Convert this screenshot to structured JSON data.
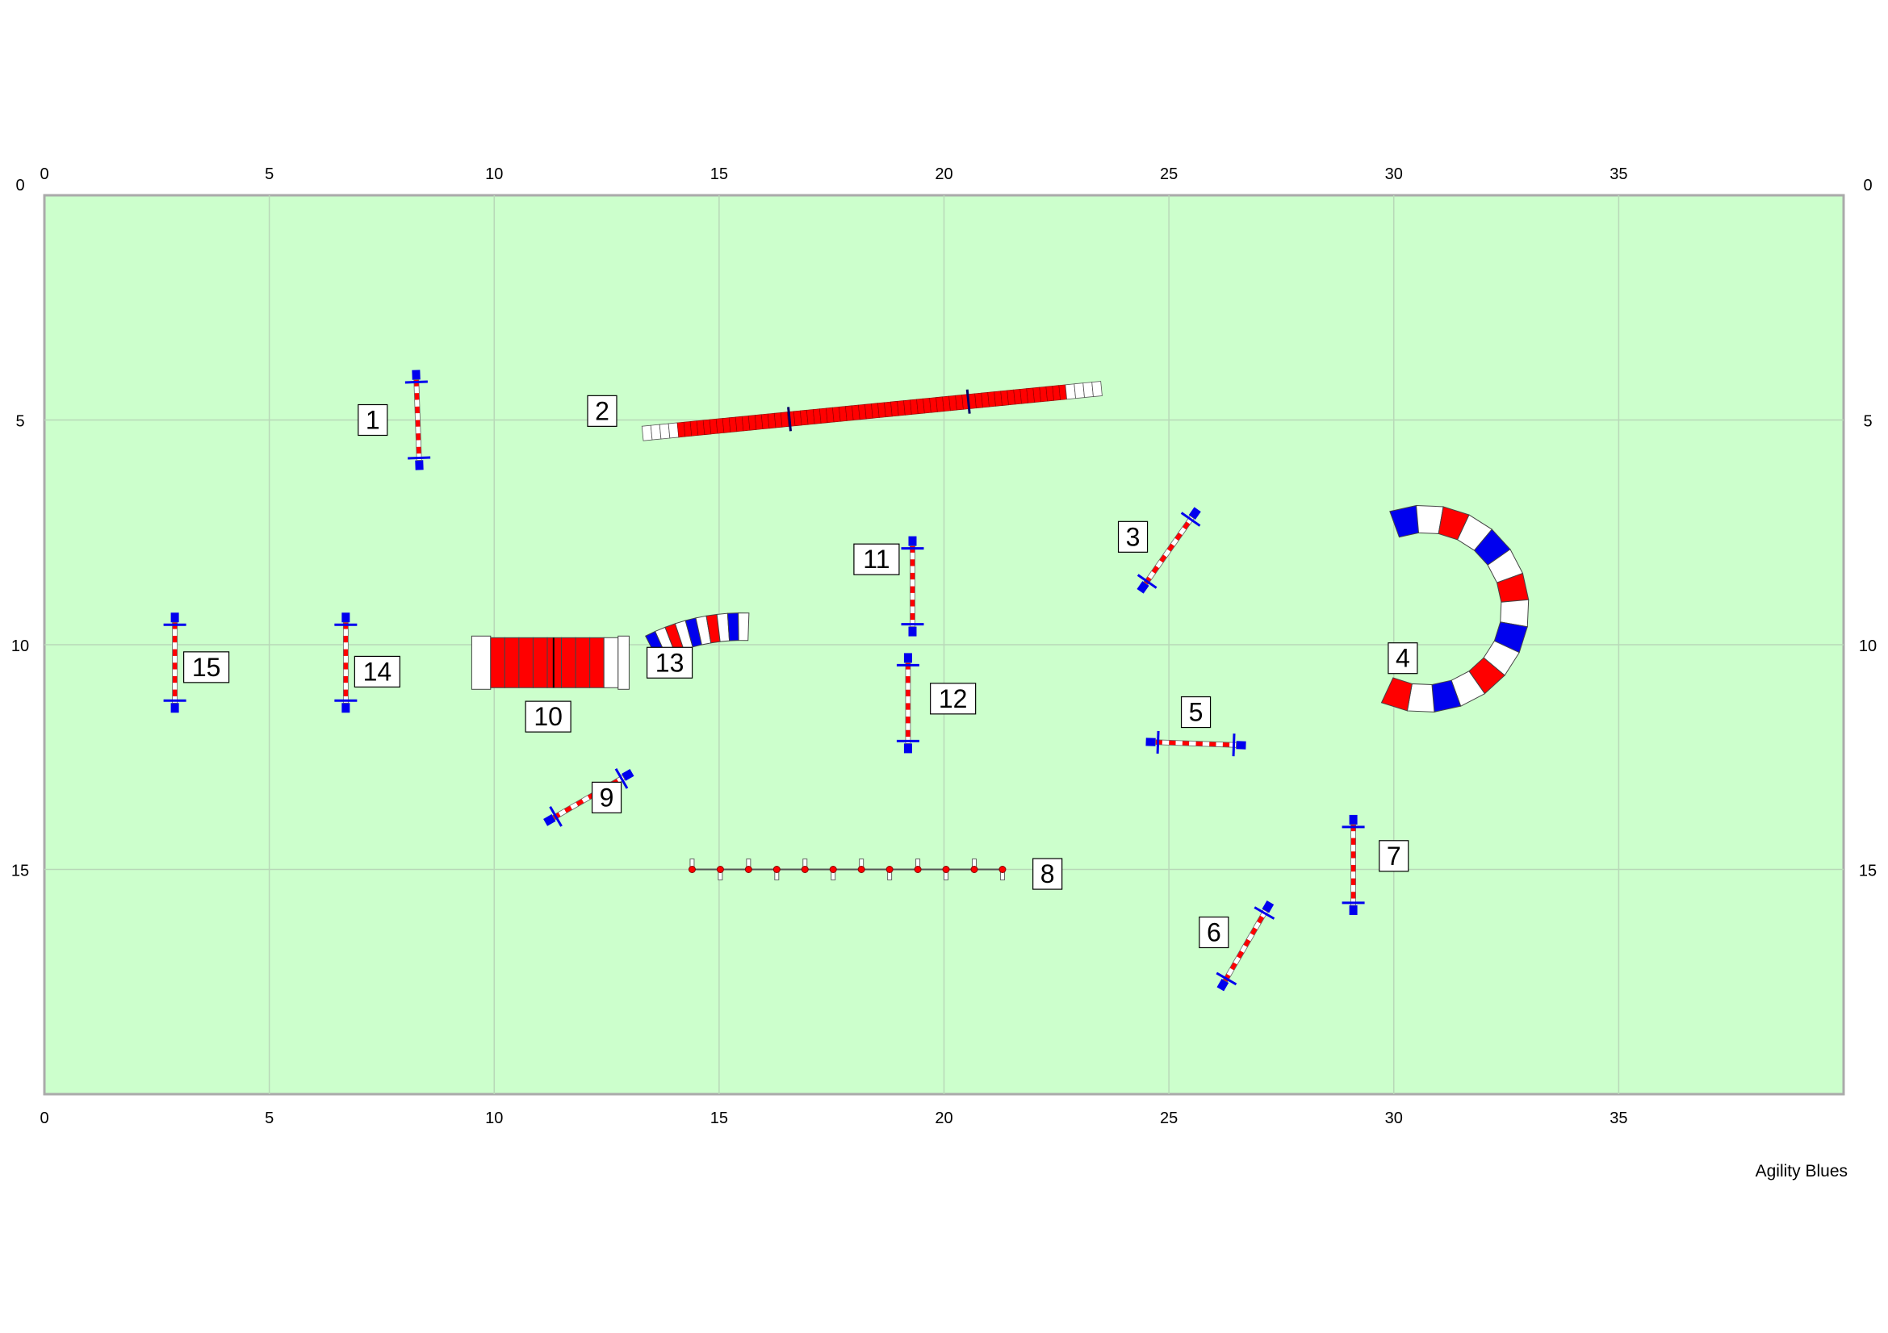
{
  "title": "",
  "credit": "Agility Blues",
  "colors": {
    "field": "#ccffcc",
    "grid": "#b8d8b8",
    "border": "#aaaaaa",
    "red": "#ff0000",
    "blue": "#0000ee",
    "white": "#ffffff"
  },
  "chart_data": {
    "type": "course-map",
    "xlim": [
      0,
      40
    ],
    "ylim": [
      0,
      20
    ],
    "x_ticks": [
      "0",
      "5",
      "10",
      "15",
      "20",
      "25",
      "30",
      "35"
    ],
    "y_ticks": [
      "0",
      "5",
      "10",
      "15"
    ],
    "obstacles": [
      {
        "number": "1",
        "type": "jump",
        "x": 8.3,
        "y": 5.0,
        "angle": 88
      },
      {
        "number": "2",
        "type": "dogwalk",
        "x1": 13.3,
        "y1": 5.3,
        "x2": 23.5,
        "y2": 4.3
      },
      {
        "number": "3",
        "type": "jump",
        "x": 25.0,
        "y": 7.9,
        "angle": -55
      },
      {
        "number": "4",
        "type": "tunnel",
        "cx": 30.7,
        "cy": 9.2,
        "r": 2.0,
        "start_deg": -110,
        "end_deg": 115
      },
      {
        "number": "5",
        "type": "jump",
        "x": 25.6,
        "y": 12.2,
        "angle": 2
      },
      {
        "number": "6",
        "type": "jump",
        "x": 26.7,
        "y": 16.7,
        "angle": -60
      },
      {
        "number": "7",
        "type": "jump",
        "x": 29.1,
        "y": 14.9,
        "angle": 90
      },
      {
        "number": "8",
        "type": "weave-poles",
        "x1": 14.4,
        "x2": 21.3,
        "y": 15.0,
        "poles": 12
      },
      {
        "number": "9",
        "type": "jump",
        "x": 12.1,
        "y": 13.4,
        "angle": -30
      },
      {
        "number": "10",
        "type": "tunnel",
        "cx": 15.5,
        "cy": 14.0,
        "r": 4.4,
        "start_deg": -117,
        "end_deg": -88
      },
      {
        "number": "11",
        "type": "jump",
        "x": 19.3,
        "y": 8.7,
        "angle": 90
      },
      {
        "number": "12",
        "type": "jump",
        "x": 19.2,
        "y": 11.3,
        "angle": 90
      },
      {
        "number": "13",
        "type": "chute",
        "x1": 9.5,
        "x2": 13.0,
        "y": 10.4
      },
      {
        "number": "14",
        "type": "jump",
        "x": 6.7,
        "y": 10.4,
        "angle": 90
      },
      {
        "number": "15",
        "type": "jump",
        "x": 2.9,
        "y": 10.4,
        "angle": 90
      }
    ],
    "labels": [
      {
        "number": "1",
        "x": 7.3,
        "y": 5.0
      },
      {
        "number": "2",
        "x": 12.4,
        "y": 4.8
      },
      {
        "number": "3",
        "x": 24.2,
        "y": 7.6
      },
      {
        "number": "4",
        "x": 30.2,
        "y": 10.3
      },
      {
        "number": "5",
        "x": 25.6,
        "y": 11.5
      },
      {
        "number": "6",
        "x": 26.0,
        "y": 16.4
      },
      {
        "number": "7",
        "x": 30.0,
        "y": 14.7
      },
      {
        "number": "8",
        "x": 22.3,
        "y": 15.1
      },
      {
        "number": "9",
        "x": 12.5,
        "y": 13.4
      },
      {
        "number": "10",
        "x": 11.2,
        "y": 11.6
      },
      {
        "number": "11",
        "x": 18.5,
        "y": 8.1
      },
      {
        "number": "12",
        "x": 20.2,
        "y": 11.2
      },
      {
        "number": "13",
        "x": 13.9,
        "y": 10.4
      },
      {
        "number": "14",
        "x": 7.4,
        "y": 10.6
      },
      {
        "number": "15",
        "x": 3.6,
        "y": 10.5
      }
    ]
  }
}
